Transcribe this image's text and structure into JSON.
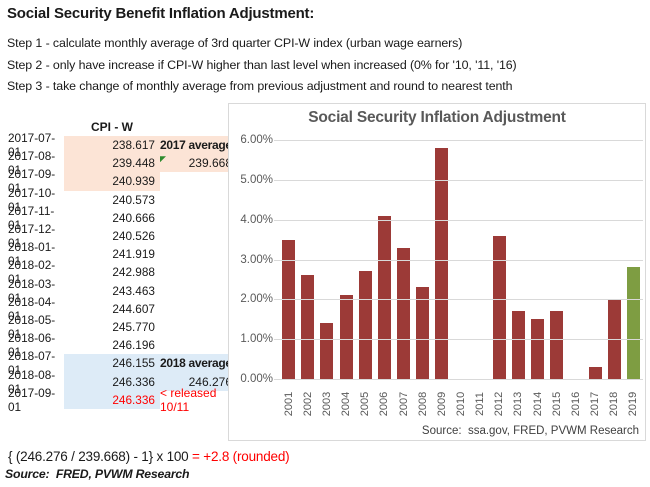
{
  "intro": {
    "title": "Social Security Benefit Inflation Adjustment:",
    "steps": [
      "Step 1 - calculate monthly average of 3rd quarter CPI-W index (urban wage earners)",
      "Step 2 - only have increase if CPI-W higher than last level when increased (0% for '10, '11, '16)",
      "Step 3 - take change of monthly average from previous adjustment and round to nearest tenth"
    ]
  },
  "table": {
    "header": "CPI - W",
    "highlight_colors": {
      "q3_2017": "#FCE4D6",
      "q3_2018": "#DDEBF7"
    },
    "rows": [
      {
        "date": "2017-07-01",
        "value": "238.617",
        "hl": "peach",
        "note": "2017 average",
        "noteStyle": "bold",
        "noteHl": "peach"
      },
      {
        "date": "2017-08-01",
        "value": "239.448",
        "hl": "peach",
        "note": "239.668",
        "noteStyle": "num",
        "noteHl": "peach",
        "flag": true
      },
      {
        "date": "2017-09-01",
        "value": "240.939",
        "hl": "peach"
      },
      {
        "date": "2017-10-01",
        "value": "240.573"
      },
      {
        "date": "2017-11-01",
        "value": "240.666"
      },
      {
        "date": "2017-12-01",
        "value": "240.526"
      },
      {
        "date": "2018-01-01",
        "value": "241.919"
      },
      {
        "date": "2018-02-01",
        "value": "242.988"
      },
      {
        "date": "2018-03-01",
        "value": "243.463"
      },
      {
        "date": "2018-04-01",
        "value": "244.607"
      },
      {
        "date": "2018-05-01",
        "value": "245.770"
      },
      {
        "date": "2018-06-01",
        "value": "246.196"
      },
      {
        "date": "2018-07-01",
        "value": "246.155",
        "hl": "blue",
        "note": "2018 average",
        "noteStyle": "bold",
        "noteHl": "blue"
      },
      {
        "date": "2018-08-01",
        "value": "246.336",
        "hl": "blue",
        "note": "246.276",
        "noteStyle": "num",
        "noteHl": "blue"
      },
      {
        "date": "2017-09-01",
        "value": "246.336",
        "hl": "blue",
        "valueRed": true,
        "note": "< released 10/11",
        "noteStyle": "red"
      }
    ]
  },
  "formula": {
    "expression": "{ (246.276 / 239.668) - 1} x 100 ",
    "result": "= +2.8 (rounded)",
    "result_color": "#FF0000"
  },
  "doc_source": "Source:  FRED, PVWM Research",
  "chart_data": {
    "type": "bar",
    "title": "Social Security Inflation Adjustment",
    "categories": [
      "2001",
      "2002",
      "2003",
      "2004",
      "2005",
      "2006",
      "2007",
      "2008",
      "2009",
      "2010",
      "2011",
      "2012",
      "2013",
      "2014",
      "2015",
      "2016",
      "2017",
      "2018",
      "2019"
    ],
    "values": [
      3.5,
      2.6,
      1.4,
      2.1,
      2.7,
      4.1,
      3.3,
      2.3,
      5.8,
      0,
      0,
      3.6,
      1.7,
      1.5,
      1.7,
      0,
      0.3,
      2.0,
      2.8
    ],
    "unit": "%",
    "xlabel": "",
    "ylabel": "",
    "ylim": [
      0,
      6
    ],
    "yticks": [
      "6.00%",
      "5.00%",
      "4.00%",
      "3.00%",
      "2.00%",
      "1.00%",
      "0.00%"
    ],
    "grid": "horizontal",
    "legend": "none",
    "bar_color": "#9C3A37",
    "highlight_color": "#7E9D42",
    "highlight_category": "2019",
    "source": "Source:  ssa.gov, FRED, PVWM Research"
  }
}
